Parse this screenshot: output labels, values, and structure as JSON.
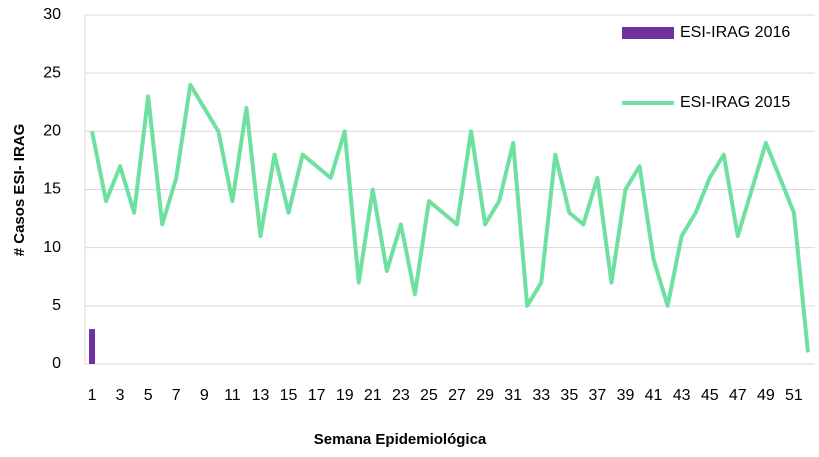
{
  "chart_data": {
    "type": "bar",
    "y_label": "# Casos ESI- IRAG",
    "x_label": "Semana Epidemiológica",
    "categories": [
      "1",
      null,
      "3",
      null,
      "5",
      null,
      "7",
      null,
      "9",
      null,
      "11",
      null,
      "13",
      null,
      "15",
      null,
      "17",
      null,
      "19",
      null,
      "21",
      null,
      "23",
      null,
      "25",
      null,
      "27",
      null,
      "29",
      null,
      "31",
      null,
      "33",
      null,
      "35",
      null,
      "37",
      null,
      "39",
      null,
      "41",
      null,
      "43",
      null,
      "45",
      null,
      "47",
      null,
      "49",
      null,
      "51",
      null
    ],
    "series": [
      {
        "name": "ESI-IRAG 2016",
        "type": "bar",
        "color": "#7030a0",
        "values": [
          3,
          null,
          null,
          null,
          null,
          null,
          null,
          null,
          null,
          null,
          null,
          null,
          null,
          null,
          null,
          null,
          null,
          null,
          null,
          null,
          null,
          null,
          null,
          null,
          null,
          null,
          null,
          null,
          null,
          null,
          null,
          null,
          null,
          null,
          null,
          null,
          null,
          null,
          null,
          null,
          null,
          null,
          null,
          null,
          null,
          null,
          null,
          null,
          null,
          null,
          null,
          null
        ]
      },
      {
        "name": "ESI-IRAG 2015",
        "type": "line",
        "color": "#6ee0a0",
        "values": [
          20,
          14,
          17,
          13,
          23,
          12,
          16,
          24,
          22,
          20,
          14,
          22,
          11,
          18,
          13,
          18,
          17,
          16,
          20,
          7,
          15,
          8,
          12,
          6,
          14,
          13,
          12,
          20,
          12,
          14,
          19,
          5,
          7,
          18,
          13,
          12,
          16,
          7,
          15,
          17,
          9,
          5,
          11,
          13,
          16,
          18,
          11,
          15,
          19,
          16,
          13,
          1
        ]
      }
    ],
    "ylim": [
      0,
      30
    ],
    "yticks": [
      0,
      5,
      10,
      15,
      20,
      25,
      30
    ],
    "grid": true
  }
}
